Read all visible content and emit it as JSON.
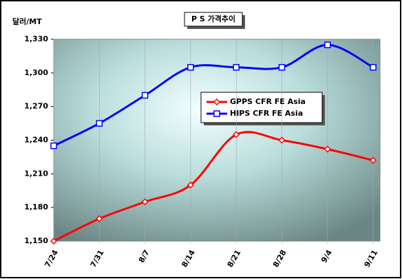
{
  "chart_data": {
    "type": "line",
    "title": "P S 가격추이",
    "y_label": "달러/MT",
    "categories": [
      "7/24",
      "7/31",
      "8/7",
      "8/14",
      "8/21",
      "8/28",
      "9/4",
      "9/11"
    ],
    "series": [
      {
        "name": "GPPS CFR FE Asia",
        "color": "#ff0000",
        "marker": "diamond",
        "values": [
          1150,
          1170,
          1185,
          1200,
          1245,
          1240,
          1232,
          1222
        ]
      },
      {
        "name": "HIPS CFR FE Asia",
        "color": "#0000ff",
        "marker": "square",
        "values": [
          1235,
          1255,
          1280,
          1305,
          1305,
          1305,
          1325,
          1305
        ]
      }
    ],
    "ylim": [
      1150,
      1330
    ],
    "yticks": [
      {
        "value": 1150,
        "label": "1,150"
      },
      {
        "value": 1180,
        "label": "1,180"
      },
      {
        "value": 1210,
        "label": "1,210"
      },
      {
        "value": 1240,
        "label": "1,240"
      },
      {
        "value": 1270,
        "label": "1,270"
      },
      {
        "value": 1300,
        "label": "1,300"
      },
      {
        "value": 1330,
        "label": "1,330"
      }
    ],
    "grid": false,
    "smooth": true
  }
}
